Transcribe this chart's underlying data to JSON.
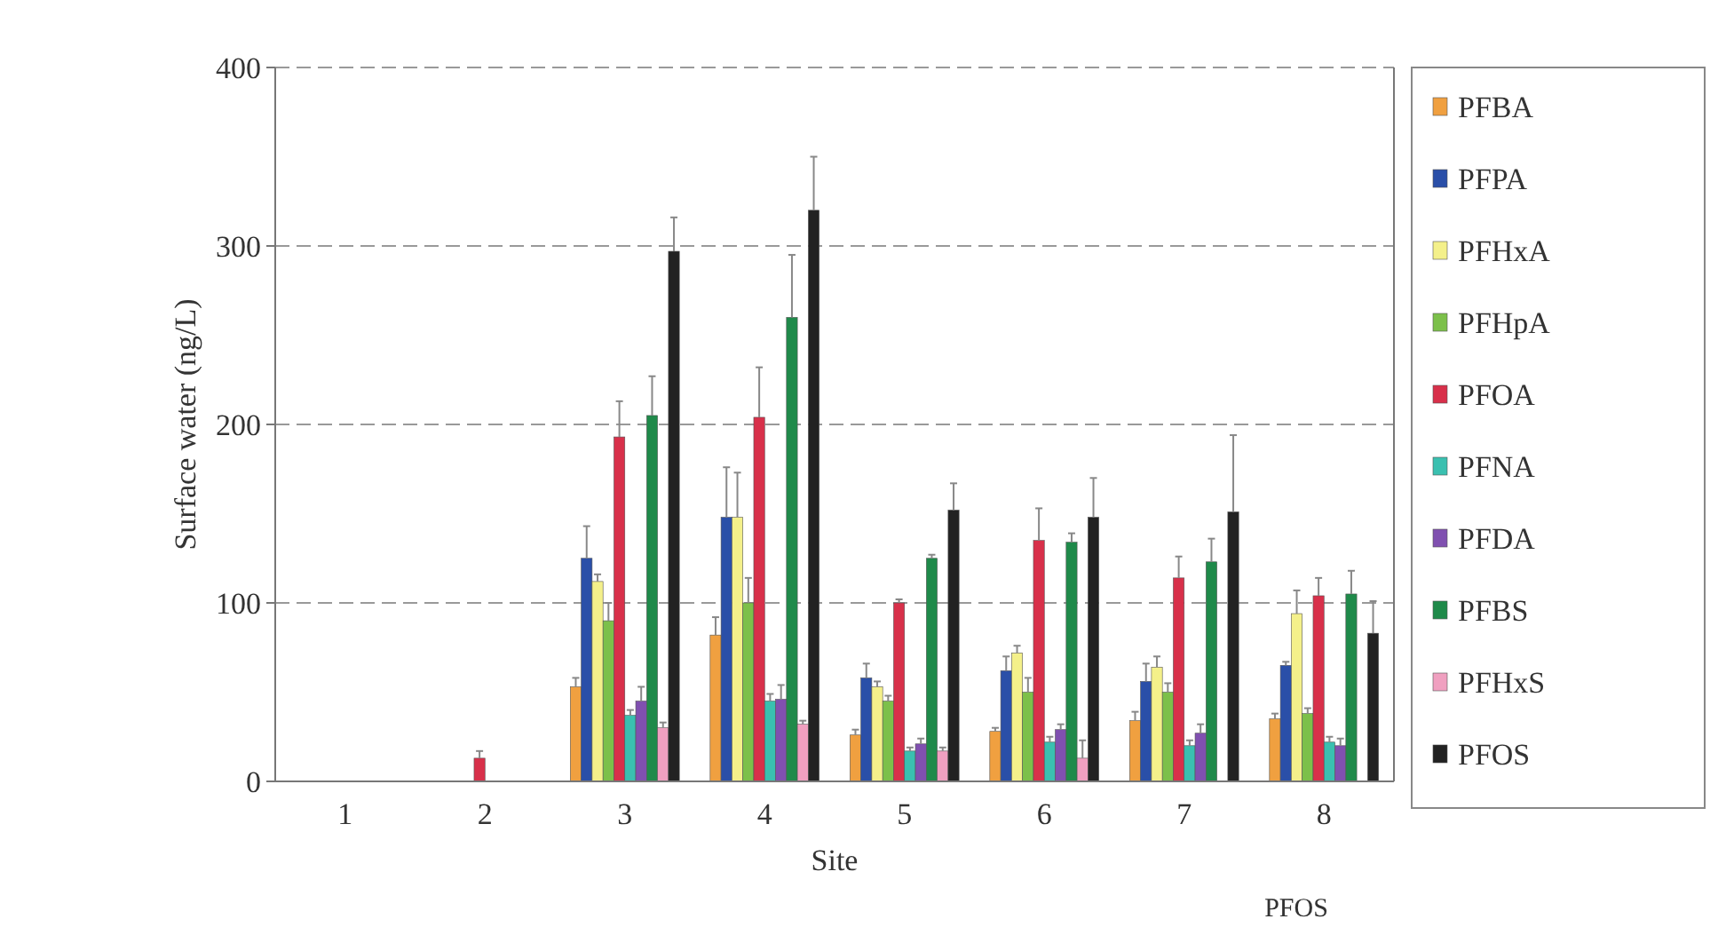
{
  "chart_data": {
    "type": "bar",
    "xlabel": "Site",
    "ylabel": "Surface water (ng/L)",
    "categories": [
      "1",
      "2",
      "3",
      "4",
      "5",
      "6",
      "7",
      "8"
    ],
    "ylim": [
      0,
      400
    ],
    "yticks": [
      0,
      100,
      200,
      300,
      400
    ],
    "grid": "y",
    "legend": "right",
    "annotations": [
      "PFOS"
    ],
    "series": [
      {
        "name": "PFBA",
        "color": "#f0a040",
        "values": [
          0,
          0,
          53,
          82,
          26,
          28,
          34,
          35
        ],
        "errors": [
          null,
          null,
          5,
          10,
          3,
          2,
          5,
          3
        ]
      },
      {
        "name": "PFPA",
        "color": "#2a4fa8",
        "values": [
          0,
          0,
          125,
          148,
          58,
          62,
          56,
          65
        ],
        "errors": [
          null,
          null,
          18,
          28,
          8,
          8,
          10,
          2
        ]
      },
      {
        "name": "PFHxA",
        "color": "#f4f08a",
        "values": [
          0,
          0,
          112,
          148,
          53,
          72,
          64,
          94
        ],
        "errors": [
          null,
          null,
          4,
          25,
          3,
          4,
          6,
          13
        ]
      },
      {
        "name": "PFHpA",
        "color": "#7cc04a",
        "values": [
          0,
          0,
          90,
          100,
          45,
          50,
          50,
          38
        ],
        "errors": [
          null,
          null,
          10,
          14,
          3,
          8,
          5,
          3
        ]
      },
      {
        "name": "PFOA",
        "color": "#d8304a",
        "values": [
          0,
          13,
          193,
          204,
          100,
          135,
          114,
          104
        ],
        "errors": [
          null,
          4,
          20,
          28,
          2,
          18,
          12,
          10
        ]
      },
      {
        "name": "PFNA",
        "color": "#3ac0b0",
        "values": [
          0,
          0,
          37,
          45,
          17,
          22,
          20,
          22
        ],
        "errors": [
          null,
          null,
          3,
          4,
          2,
          3,
          3,
          3
        ]
      },
      {
        "name": "PFDA",
        "color": "#8050b0",
        "values": [
          0,
          0,
          45,
          46,
          21,
          29,
          27,
          20
        ],
        "errors": [
          null,
          null,
          8,
          8,
          3,
          3,
          5,
          4
        ]
      },
      {
        "name": "PFBS",
        "color": "#1f8a4a",
        "values": [
          0,
          0,
          205,
          260,
          125,
          134,
          123,
          105
        ],
        "errors": [
          null,
          null,
          22,
          35,
          2,
          5,
          13,
          13
        ]
      },
      {
        "name": "PFHxS",
        "color": "#f0a0c0",
        "values": [
          0,
          0,
          30,
          32,
          17,
          13,
          0,
          0
        ],
        "errors": [
          null,
          null,
          3,
          2,
          2,
          10,
          null,
          null
        ]
      },
      {
        "name": "PFOS",
        "color": "#222222",
        "values": [
          0,
          0,
          297,
          320,
          152,
          148,
          151,
          83
        ],
        "errors": [
          null,
          null,
          19,
          30,
          15,
          22,
          43,
          18
        ]
      }
    ]
  }
}
